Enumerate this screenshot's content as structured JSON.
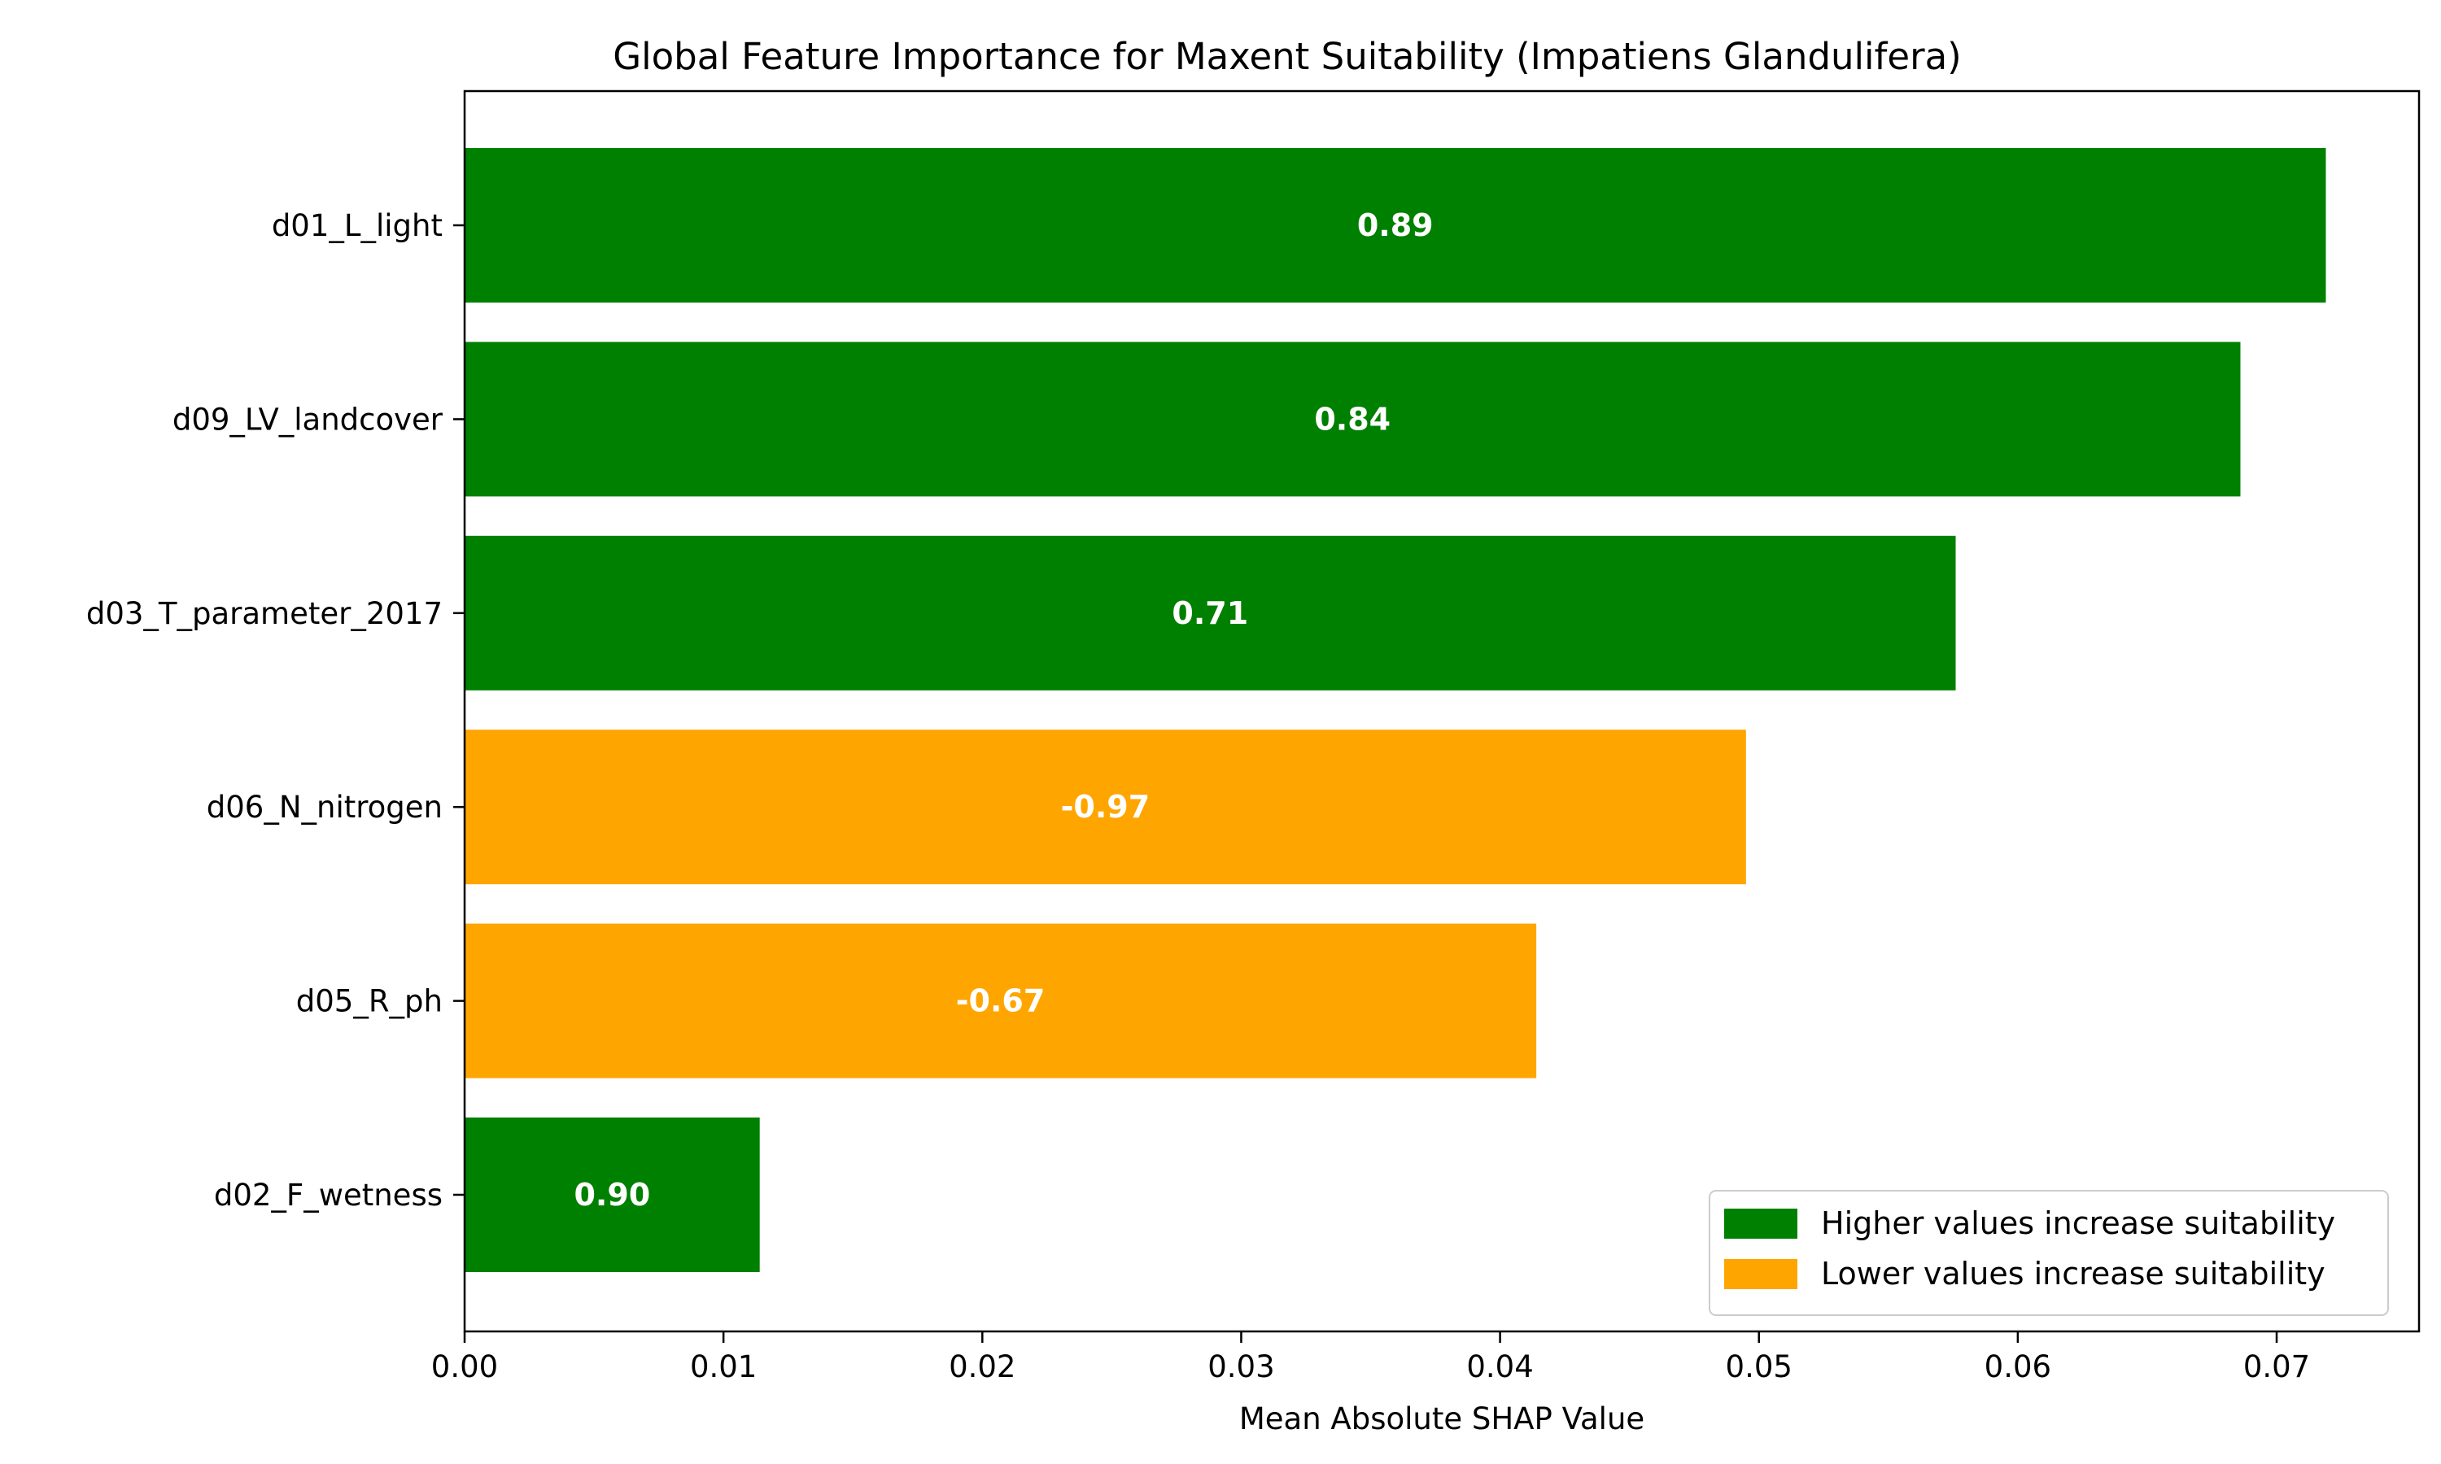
{
  "chart_data": {
    "type": "bar",
    "orientation": "horizontal",
    "title": "Global Feature Importance for Maxent Suitability (Impatiens Glandulifera)",
    "xlabel": "Mean Absolute SHAP Value",
    "ylabel": "",
    "xlim": [
      0.0,
      0.0755
    ],
    "xticks": [
      "0.00",
      "0.01",
      "0.02",
      "0.03",
      "0.04",
      "0.05",
      "0.06",
      "0.07"
    ],
    "xtick_values": [
      0.0,
      0.01,
      0.02,
      0.03,
      0.04,
      0.05,
      0.06,
      0.07
    ],
    "grid": false,
    "legend_position": "bottom-right",
    "colors": {
      "positive": "#008000",
      "negative": "#FFA500"
    },
    "legend": [
      {
        "label": "Higher values increase suitability",
        "color": "#008000"
      },
      {
        "label": "Lower values increase suitability",
        "color": "#FFA500"
      }
    ],
    "categories": [
      "d01_L_light",
      "d09_LV_landcover",
      "d03_T_parameter_2017",
      "d06_N_nitrogen",
      "d05_R_ph",
      "d02_F_wetness"
    ],
    "values": [
      0.0719,
      0.0686,
      0.0576,
      0.0495,
      0.0414,
      0.0114
    ],
    "bar_labels": [
      "0.89",
      "0.84",
      "0.71",
      "-0.97",
      "-0.67",
      "0.90"
    ],
    "directions": [
      "positive",
      "positive",
      "positive",
      "negative",
      "negative",
      "positive"
    ]
  }
}
